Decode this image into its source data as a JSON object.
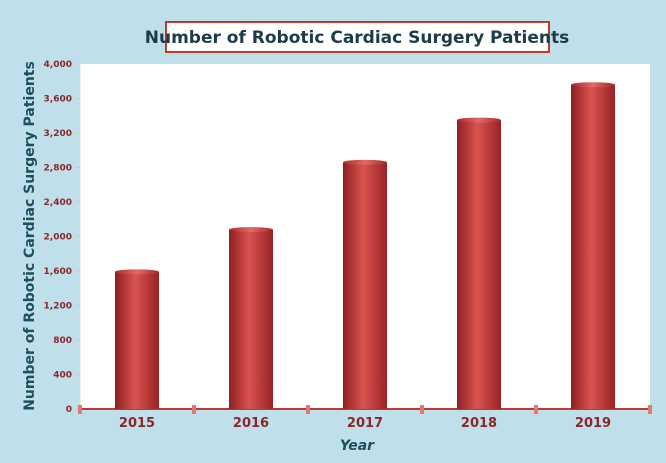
{
  "chart_data": {
    "type": "bar",
    "title": "Number of Robotic Cardiac Surgery Patients",
    "xlabel": "Year",
    "ylabel": "Number of Robotic Cardiac Surgery Patients",
    "categories": [
      "2015",
      "2016",
      "2017",
      "2018",
      "2019"
    ],
    "values": [
      1590,
      2080,
      2860,
      3350,
      3760
    ],
    "ylim": [
      0,
      4000
    ],
    "yticks": [
      "0",
      "400",
      "800",
      "1,200",
      "1,600",
      "2,000",
      "2,400",
      "2,800",
      "3,200",
      "3,600",
      "4,000"
    ],
    "grid": false,
    "legend": "none",
    "colors": {
      "bar": "#b83236",
      "bar_highlight": "#d9534f",
      "plot_bg": "#ffffff",
      "page_bg": "#bfe0ea",
      "title_border": "#c0392b",
      "axis_text": "#8b2727",
      "label_text": "#1f4e5c"
    }
  }
}
